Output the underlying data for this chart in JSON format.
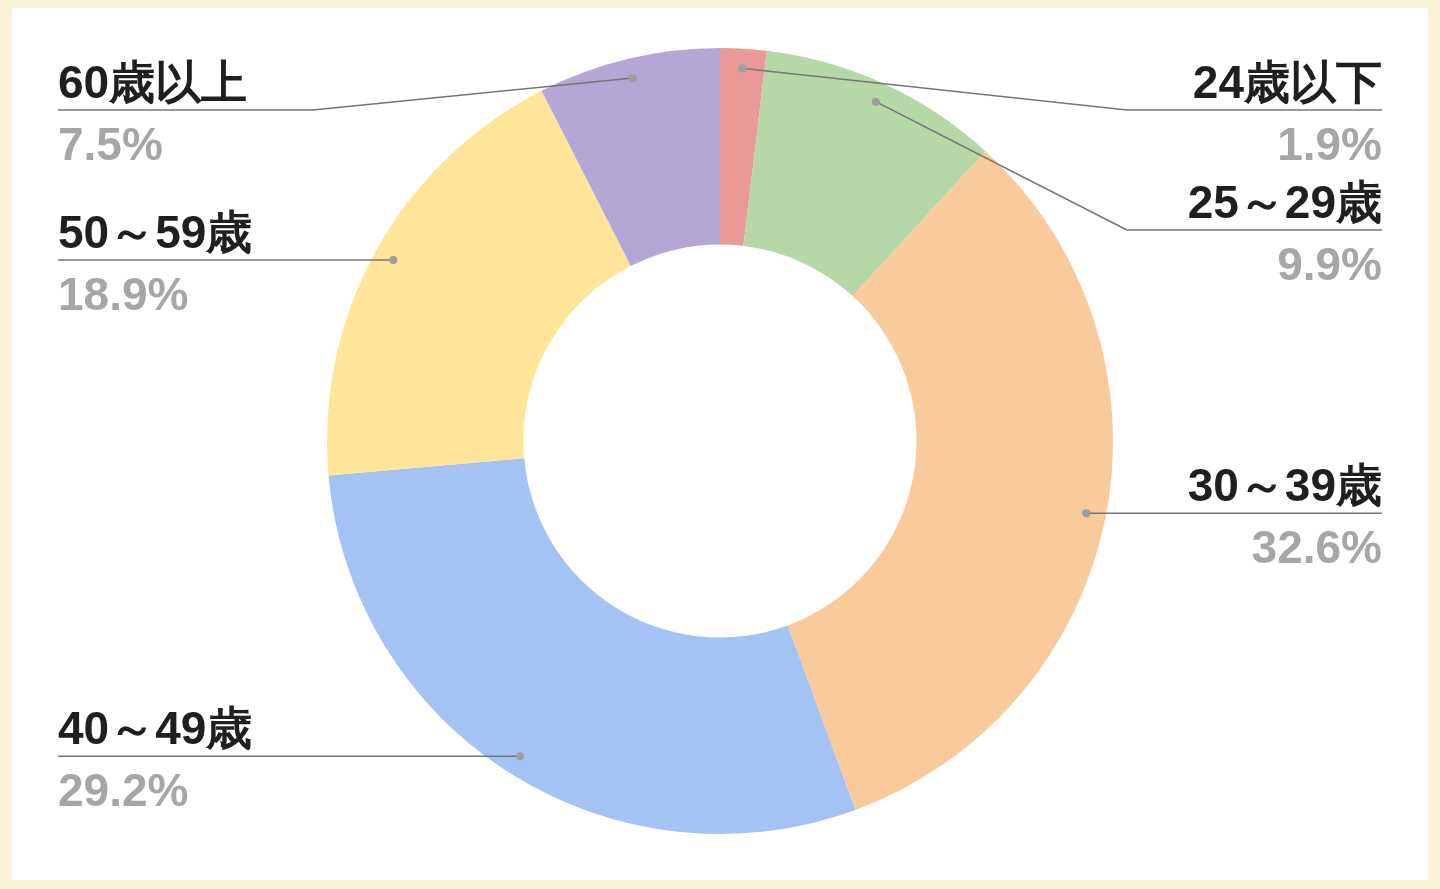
{
  "chart_data": {
    "type": "donut",
    "categories": [
      "24歳以下",
      "25～29歳",
      "30～39歳",
      "40～49歳",
      "50～59歳",
      "60歳以上"
    ],
    "values": [
      1.9,
      9.9,
      32.6,
      29.2,
      18.9,
      7.5
    ],
    "colors": [
      "#ea9999",
      "#b6d7a8",
      "#f9cb9c",
      "#a4c2f4",
      "#ffe599",
      "#b4a7d6"
    ],
    "value_labels": [
      "1.9%",
      "9.9%",
      "32.6%",
      "29.2%",
      "18.9%",
      "7.5%"
    ]
  }
}
